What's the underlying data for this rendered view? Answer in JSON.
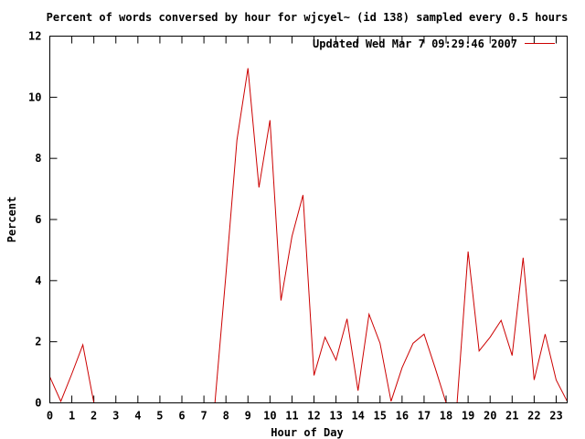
{
  "chart_data": {
    "type": "line",
    "title": "Percent of words conversed by hour for wjcyel~ (id 138) sampled every 0.5 hours",
    "xlabel": "Hour of Day",
    "ylabel": "Percent",
    "xlim": [
      0,
      23.5
    ],
    "ylim": [
      0,
      12
    ],
    "xticks": [
      0,
      1,
      2,
      3,
      4,
      5,
      6,
      7,
      8,
      9,
      10,
      11,
      12,
      13,
      14,
      15,
      16,
      17,
      18,
      19,
      20,
      21,
      22,
      23
    ],
    "yticks": [
      0,
      2,
      4,
      6,
      8,
      10,
      12
    ],
    "grid": false,
    "legend_position": "top-right",
    "series": [
      {
        "name": "Updated Wed Mar  7 09:29:46 2007",
        "color": "#cc0000",
        "x": [
          0,
          0.5,
          1,
          1.5,
          2,
          2.5,
          3,
          3.5,
          4,
          4.5,
          5,
          5.5,
          6,
          6.5,
          7,
          7.5,
          8,
          8.5,
          9,
          9.5,
          10,
          10.5,
          11,
          11.5,
          12,
          12.5,
          13,
          13.5,
          14,
          14.5,
          15,
          15.5,
          16,
          16.5,
          17,
          17.5,
          18,
          18.5,
          19,
          19.5,
          20,
          20.5,
          21,
          21.5,
          22,
          22.5,
          23,
          23.5
        ],
        "values": [
          0.85,
          0.05,
          0.95,
          1.9,
          0,
          0,
          0,
          0,
          0,
          0,
          0,
          0,
          0,
          0,
          0,
          0,
          4.2,
          8.6,
          10.95,
          7.05,
          9.25,
          3.35,
          5.45,
          6.8,
          0.9,
          2.15,
          1.4,
          2.75,
          0.4,
          2.9,
          1.95,
          0.05,
          1.15,
          1.95,
          2.25,
          1.15,
          0,
          0,
          4.95,
          1.7,
          2.15,
          2.7,
          1.55,
          4.75,
          0.75,
          2.25,
          0.75,
          0.05
        ]
      }
    ]
  }
}
